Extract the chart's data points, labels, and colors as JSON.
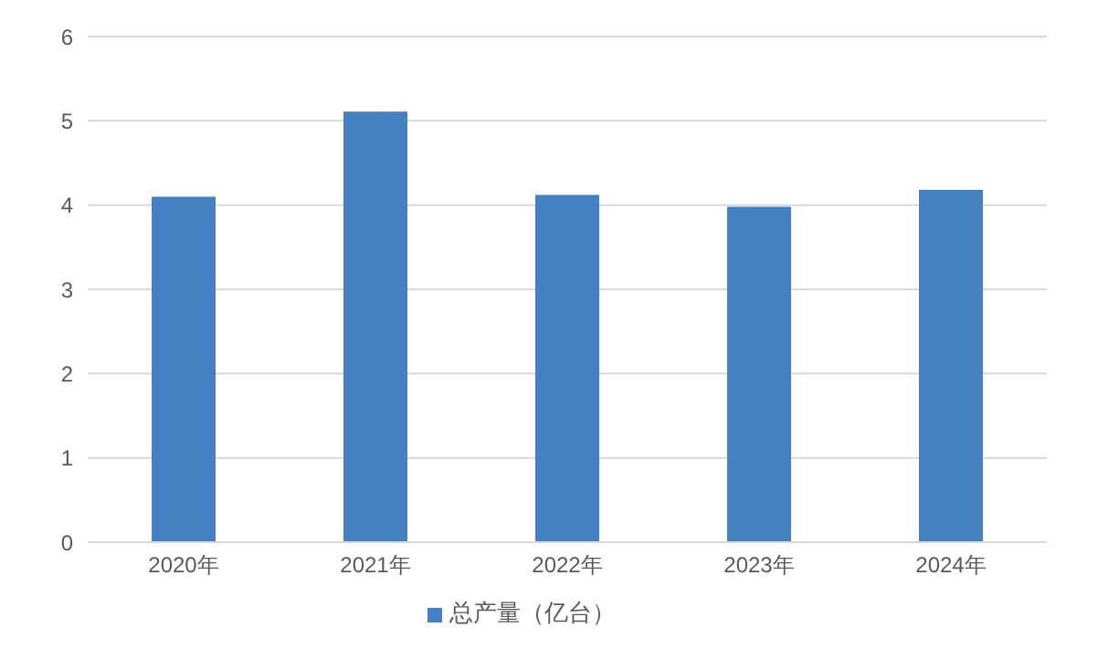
{
  "chart_data": {
    "type": "bar",
    "categories": [
      "2020年",
      "2021年",
      "2022年",
      "2023年",
      "2024年"
    ],
    "series": [
      {
        "name": "总产量（亿台）",
        "color": "#4581c2",
        "values": [
          4.1,
          5.11,
          4.12,
          3.98,
          4.18
        ]
      }
    ],
    "ylim": [
      0,
      6
    ],
    "yticks": [
      0,
      1,
      2,
      3,
      4,
      5,
      6
    ],
    "grid": "y",
    "legend": "bottom"
  }
}
